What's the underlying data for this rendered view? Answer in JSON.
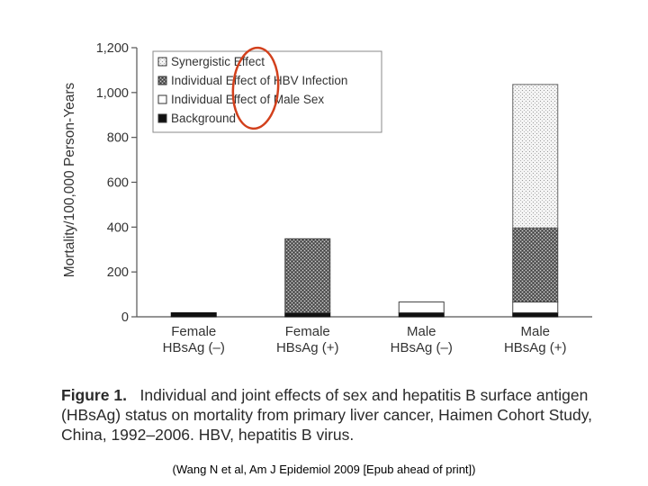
{
  "chart_data": {
    "type": "bar",
    "stacked": true,
    "ylabel": "Mortality/100,000 Person-Years",
    "xlabel": "",
    "ylim": [
      0,
      1200
    ],
    "yticks": [
      0,
      200,
      400,
      600,
      800,
      1000,
      1200
    ],
    "ytick_labels": [
      "0",
      "200",
      "400",
      "600",
      "800",
      "1,000",
      "1,200"
    ],
    "categories": [
      [
        "Female",
        "HBsAg (–)"
      ],
      [
        "Female",
        "HBsAg (+)"
      ],
      [
        "Male",
        "HBsAg (–)"
      ],
      [
        "Male",
        "HBsAg (+)"
      ]
    ],
    "series": [
      {
        "name": "Background",
        "values": [
          18,
          18,
          18,
          18
        ]
      },
      {
        "name": "Individual Effect of Male Sex",
        "values": [
          0,
          0,
          48,
          48
        ]
      },
      {
        "name": "Individual Effect of HBV Infection",
        "values": [
          0,
          330,
          0,
          330
        ]
      },
      {
        "name": "Synergistic Effect",
        "values": [
          0,
          0,
          0,
          640
        ]
      }
    ],
    "legend_order": [
      "Synergistic Effect",
      "Individual Effect of HBV Infection",
      "Individual Effect of Male Sex",
      "Background"
    ],
    "legend_position": "top-left",
    "grid": false
  },
  "annotations": {
    "highlight_color": "#d2401c"
  },
  "caption": {
    "label": "Figure 1.",
    "text": "Individual and joint effects of sex and hepatitis B surface antigen (HBsAg) status on mortality from primary liver cancer, Haimen Cohort Study, China, 1992–2006. HBV, hepatitis B virus."
  },
  "citation": "(Wang N et al, Am J Epidemiol 2009 [Epub ahead of print])"
}
